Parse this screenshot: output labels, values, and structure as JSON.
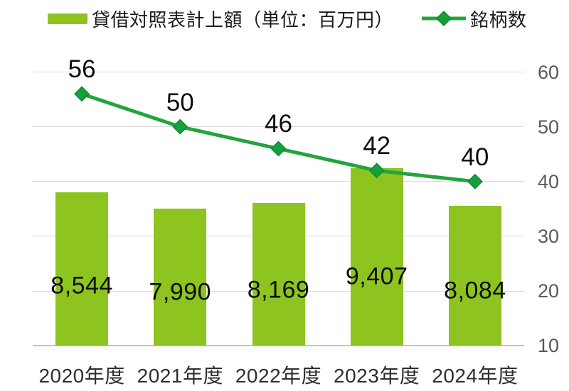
{
  "legend": {
    "bar_label": "貸借対照表計上額（単位：百万円）",
    "line_label": "銘柄数"
  },
  "colors": {
    "bar": "#8dc41f",
    "line": "#23a43c",
    "marker_fill": "#14a13c",
    "marker_stroke": "#0b8a31",
    "gridline": "#d9d9d9",
    "axis_line": "#c3c3c3",
    "y_tick_text": "#595959",
    "x_label_text": "#2e2e2e",
    "data_label_text": "#0d0d0d"
  },
  "chart_data": {
    "type": "combo",
    "categories": [
      "2020年度",
      "2021年度",
      "2022年度",
      "2023年度",
      "2024年度"
    ],
    "series": [
      {
        "name": "貸借対照表計上額（単位：百万円）",
        "type": "bar",
        "values": [
          8544,
          7990,
          8169,
          9407,
          8084
        ],
        "labels": [
          "8,544",
          "7,990",
          "8,169",
          "9,407",
          "8,084"
        ],
        "color": "#8dc41f",
        "axis": "hidden-left",
        "hidden_axis_range": [
          3140,
          12800
        ]
      },
      {
        "name": "銘柄数",
        "type": "line",
        "values": [
          56,
          50,
          46,
          42,
          40
        ],
        "labels": [
          "56",
          "50",
          "46",
          "42",
          "40"
        ],
        "color": "#23a43c",
        "marker": "diamond",
        "axis": "right"
      }
    ],
    "right_axis": {
      "min": 10,
      "max": 60,
      "ticks": [
        60,
        50,
        40,
        30,
        20,
        10
      ]
    },
    "grid": true,
    "legend_position": "top",
    "title": "",
    "xlabel": "",
    "ylabel": ""
  }
}
